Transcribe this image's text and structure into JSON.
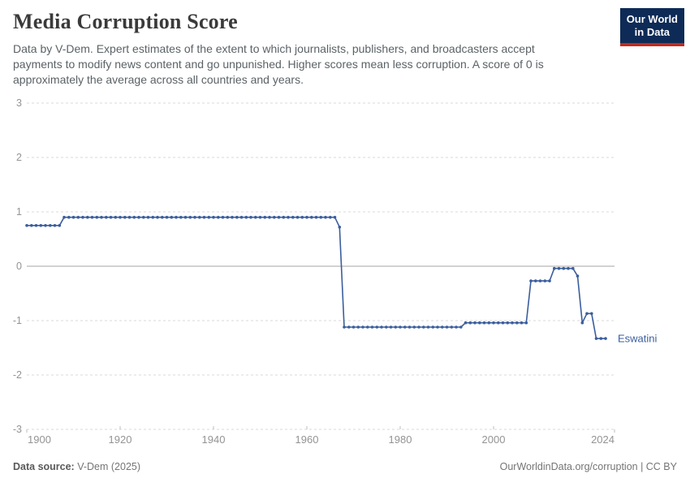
{
  "header": {
    "title": "Media Corruption Score",
    "subtitle": "Data by V-Dem. Expert estimates of the extent to which journalists, publishers, and broadcasters accept payments to modify news content and go unpunished. Higher scores mean less corruption. A score of 0 is approximately the average across all countries and years.",
    "logo_line1": "Our World",
    "logo_line2": "in Data"
  },
  "footer": {
    "source_label": "Data source:",
    "source_value": " V-Dem (2025)",
    "credit": "OurWorldinData.org/corruption | CC BY"
  },
  "colors": {
    "series_blue": "#3b5e9d",
    "logo_bg": "#0d2b56",
    "logo_red": "#c5281c",
    "gridline": "#dadada",
    "zero_line": "#a5a5a5",
    "axis_text": "#949494",
    "tick": "#bdbdbd"
  },
  "chart_data": {
    "type": "line",
    "title": "Media Corruption Score",
    "entity": "Eswatini",
    "xlabel": "",
    "ylabel": "",
    "xlim": [
      1900,
      2024
    ],
    "ylim": [
      -3,
      3
    ],
    "x_ticks": [
      1900,
      1920,
      1940,
      1960,
      1980,
      2000,
      2024
    ],
    "y_ticks": [
      3,
      2,
      1,
      0,
      -1,
      -2,
      -3
    ],
    "grid": true,
    "legend_position": "end-of-line",
    "series": [
      {
        "name": "Eswatini",
        "color": "#3b5e9d",
        "runs_format": "[start_year, end_year, value] — one data point per year",
        "runs": [
          [
            1900,
            1907,
            0.75
          ],
          [
            1908,
            1966,
            0.9
          ],
          [
            1967,
            1967,
            0.72
          ],
          [
            1968,
            1993,
            -1.12
          ],
          [
            1994,
            2007,
            -1.04
          ],
          [
            2008,
            2012,
            -0.27
          ],
          [
            2013,
            2017,
            -0.04
          ],
          [
            2018,
            2018,
            -0.18
          ],
          [
            2019,
            2019,
            -1.04
          ],
          [
            2020,
            2021,
            -0.87
          ],
          [
            2022,
            2024,
            -1.33
          ]
        ]
      }
    ]
  }
}
